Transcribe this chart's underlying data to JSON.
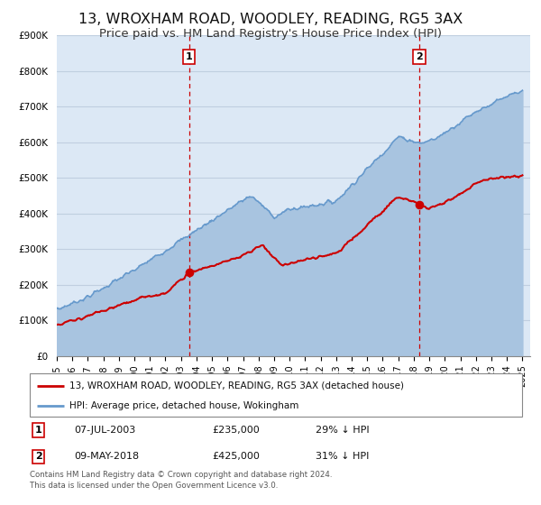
{
  "title": "13, WROXHAM ROAD, WOODLEY, READING, RG5 3AX",
  "subtitle": "Price paid vs. HM Land Registry's House Price Index (HPI)",
  "title_fontsize": 11.5,
  "subtitle_fontsize": 9.5,
  "ylim": [
    0,
    900000
  ],
  "yticks": [
    0,
    100000,
    200000,
    300000,
    400000,
    500000,
    600000,
    700000,
    800000,
    900000
  ],
  "ytick_labels": [
    "£0",
    "£100K",
    "£200K",
    "£300K",
    "£400K",
    "£500K",
    "£600K",
    "£700K",
    "£800K",
    "£900K"
  ],
  "xlim_start": 1995.0,
  "xlim_end": 2025.5,
  "xticks": [
    1995,
    1996,
    1997,
    1998,
    1999,
    2000,
    2001,
    2002,
    2003,
    2004,
    2005,
    2006,
    2007,
    2008,
    2009,
    2010,
    2011,
    2012,
    2013,
    2014,
    2015,
    2016,
    2017,
    2018,
    2019,
    2020,
    2021,
    2022,
    2023,
    2024,
    2025
  ],
  "fig_bg_color": "#ffffff",
  "plot_bg_color": "#dce8f5",
  "grid_color": "#c0cfe0",
  "sale1_x": 2003.52,
  "sale1_y": 235000,
  "sale1_label": "1",
  "sale1_date": "07-JUL-2003",
  "sale1_price": "£235,000",
  "sale1_hpi": "29% ↓ HPI",
  "sale2_x": 2018.36,
  "sale2_y": 425000,
  "sale2_label": "2",
  "sale2_date": "09-MAY-2018",
  "sale2_price": "£425,000",
  "sale2_hpi": "31% ↓ HPI",
  "red_line_color": "#cc0000",
  "blue_line_color": "#6699cc",
  "blue_fill_color": "#a8c4e0",
  "marker_color": "#cc0000",
  "vline_color": "#cc0000",
  "legend_label_red": "13, WROXHAM ROAD, WOODLEY, READING, RG5 3AX (detached house)",
  "legend_label_blue": "HPI: Average price, detached house, Wokingham",
  "footer": "Contains HM Land Registry data © Crown copyright and database right 2024.\nThis data is licensed under the Open Government Licence v3.0."
}
